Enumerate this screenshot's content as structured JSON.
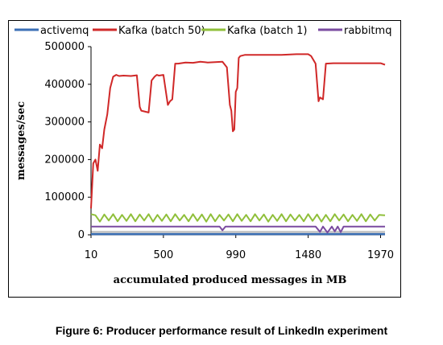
{
  "caption": "Figure 6: Producer performance result of LinkedIn experiment",
  "chart_data": {
    "type": "line",
    "xlabel": "accumulated produced messages in MB",
    "ylabel": "messages/sec",
    "xlim": [
      10,
      2000
    ],
    "ylim": [
      0,
      500000
    ],
    "x_ticks": [
      10,
      500,
      990,
      1480,
      1970
    ],
    "y_ticks": [
      0,
      100000,
      200000,
      300000,
      400000,
      500000
    ],
    "legend_position": "top",
    "grid": false,
    "series": [
      {
        "name": "activemq",
        "color": "#3b6fb5",
        "x": [
          10,
          2000
        ],
        "y": [
          2000,
          2000
        ]
      },
      {
        "name": "Kafka (batch 50)",
        "color": "#d02828",
        "x": [
          10,
          25,
          40,
          55,
          70,
          85,
          100,
          120,
          140,
          160,
          180,
          200,
          230,
          280,
          320,
          340,
          350,
          400,
          420,
          440,
          455,
          470,
          500,
          530,
          545,
          560,
          580,
          600,
          650,
          700,
          750,
          800,
          850,
          900,
          930,
          950,
          960,
          970,
          980,
          990,
          1000,
          1010,
          1020,
          1050,
          1100,
          1200,
          1300,
          1400,
          1480,
          1500,
          1530,
          1550,
          1560,
          1580,
          1600,
          1650,
          1700,
          1800,
          1900,
          1970,
          2000
        ],
        "y": [
          70000,
          190000,
          200000,
          170000,
          240000,
          230000,
          280000,
          320000,
          390000,
          420000,
          425000,
          422000,
          423000,
          422000,
          424000,
          340000,
          330000,
          325000,
          410000,
          420000,
          425000,
          423000,
          425000,
          345000,
          355000,
          360000,
          455000,
          455000,
          458000,
          457000,
          460000,
          458000,
          459000,
          460000,
          445000,
          345000,
          330000,
          275000,
          280000,
          380000,
          390000,
          470000,
          475000,
          478000,
          478000,
          478000,
          478000,
          480000,
          480000,
          475000,
          455000,
          355000,
          365000,
          360000,
          455000,
          456000,
          456000,
          456000,
          456000,
          456000,
          452000
        ]
      },
      {
        "name": "Kafka (batch 1)",
        "color": "#8fbf3a",
        "x": [
          10,
          40,
          70,
          100,
          130,
          160,
          190,
          220,
          250,
          280,
          310,
          340,
          370,
          400,
          430,
          460,
          490,
          520,
          550,
          580,
          610,
          640,
          670,
          700,
          730,
          760,
          790,
          820,
          850,
          880,
          910,
          940,
          970,
          1000,
          1030,
          1060,
          1090,
          1120,
          1150,
          1180,
          1210,
          1240,
          1270,
          1300,
          1330,
          1360,
          1390,
          1420,
          1450,
          1480,
          1510,
          1540,
          1570,
          1600,
          1630,
          1660,
          1690,
          1720,
          1750,
          1780,
          1810,
          1840,
          1870,
          1900,
          1930,
          1960,
          2000
        ],
        "y": [
          55000,
          52000,
          35000,
          54000,
          38000,
          55000,
          36000,
          53000,
          37000,
          55000,
          36000,
          54000,
          38000,
          55000,
          35000,
          53000,
          37000,
          54000,
          36000,
          55000,
          38000,
          53000,
          36000,
          55000,
          37000,
          54000,
          35000,
          55000,
          36000,
          53000,
          38000,
          54000,
          36000,
          55000,
          37000,
          53000,
          36000,
          55000,
          38000,
          54000,
          35000,
          53000,
          37000,
          55000,
          36000,
          54000,
          38000,
          53000,
          36000,
          55000,
          37000,
          54000,
          35000,
          53000,
          36000,
          55000,
          38000,
          54000,
          36000,
          53000,
          37000,
          55000,
          36000,
          54000,
          38000,
          53000,
          52000
        ]
      },
      {
        "name": "rabbitmq",
        "color": "#7a4ba0",
        "x": [
          10,
          200,
          400,
          600,
          800,
          880,
          900,
          920,
          940,
          1000,
          1200,
          1400,
          1530,
          1560,
          1580,
          1610,
          1640,
          1660,
          1680,
          1700,
          1720,
          1750,
          1800,
          2000
        ],
        "y": [
          22000,
          22000,
          22000,
          22000,
          22000,
          22000,
          12000,
          22000,
          22000,
          22000,
          22000,
          22000,
          22000,
          8000,
          22000,
          6000,
          22000,
          9000,
          22000,
          7000,
          22000,
          22000,
          22000,
          22000
        ]
      }
    ]
  }
}
